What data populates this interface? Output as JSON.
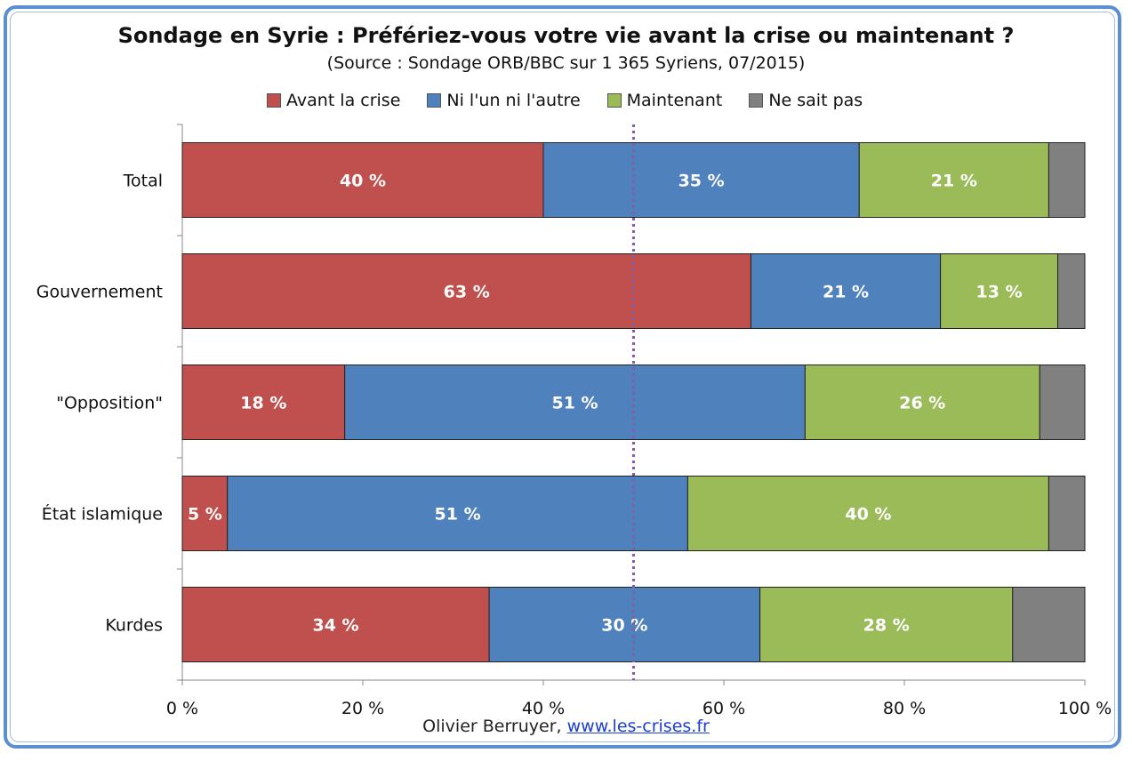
{
  "chart_data": {
    "type": "bar",
    "orientation": "horizontal",
    "stacked": true,
    "title": "Sondage en Syrie : Préfériez-vous votre vie avant la crise ou maintenant ?",
    "subtitle": "(Source : Sondage ORB/BBC sur 1 365 Syriens, 07/2015)",
    "categories": [
      "Total",
      "Gouvernement",
      "\"Opposition\"",
      "État islamique",
      "Kurdes"
    ],
    "series": [
      {
        "name": "Avant la crise",
        "color": "#c0504d",
        "values": [
          40,
          63,
          18,
          5,
          34
        ],
        "labels": [
          "40 %",
          "63 %",
          "18 %",
          "5 %",
          "34 %"
        ]
      },
      {
        "name": "Ni l'un ni l'autre",
        "color": "#4f81bd",
        "values": [
          35,
          21,
          51,
          51,
          30
        ],
        "labels": [
          "35 %",
          "21 %",
          "51 %",
          "51 %",
          "30 %"
        ]
      },
      {
        "name": "Maintenant",
        "color": "#9bbb59",
        "values": [
          21,
          13,
          26,
          40,
          28
        ],
        "labels": [
          "21 %",
          "13 %",
          "26 %",
          "40 %",
          "28 %"
        ]
      },
      {
        "name": "Ne sait pas",
        "color": "#808080",
        "values": [
          4,
          3,
          5,
          4,
          8
        ],
        "labels": [
          "",
          "",
          "",
          "",
          ""
        ]
      }
    ],
    "xlim": [
      0,
      100
    ],
    "xticks": [
      "0 %",
      "20 %",
      "40 %",
      "60 %",
      "80 %",
      "100 %"
    ],
    "reference_line": 50,
    "reference_line_color": "#7f5fa8",
    "legend_position": "top",
    "grid": false
  },
  "footer": {
    "author": "Olivier Berruyer,",
    "link": "www.les-crises.fr"
  },
  "frame_color": "#5b8fd0"
}
